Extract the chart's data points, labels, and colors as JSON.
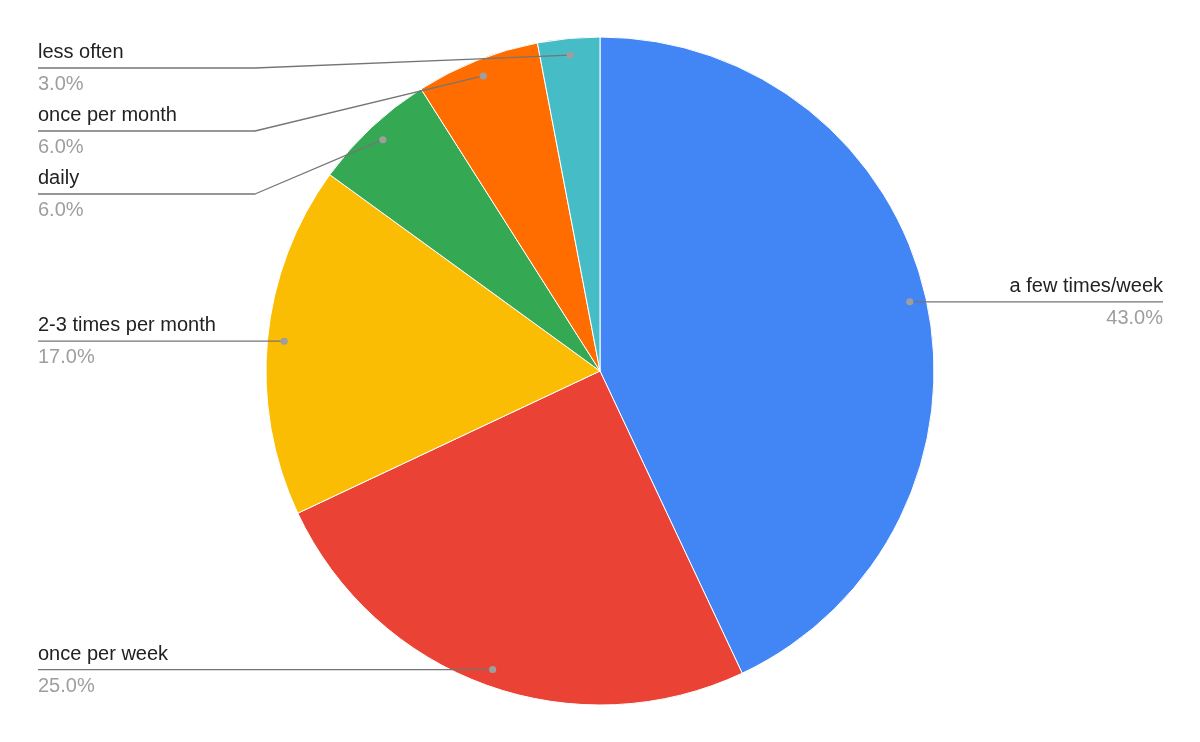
{
  "chart_data": {
    "type": "pie",
    "categories": [
      "a few times/week",
      "once per week",
      "2-3 times per month",
      "daily",
      "once per month",
      "less often"
    ],
    "values": [
      43,
      25,
      17,
      6,
      6,
      3
    ],
    "colors": [
      "#4285f4",
      "#ea4335",
      "#fbbc04",
      "#34a853",
      "#ff6d01",
      "#46bdc6"
    ],
    "value_labels": [
      "43.0%",
      "25.0%",
      "17.0%",
      "6.0%",
      "6.0%",
      "3.0%"
    ]
  }
}
